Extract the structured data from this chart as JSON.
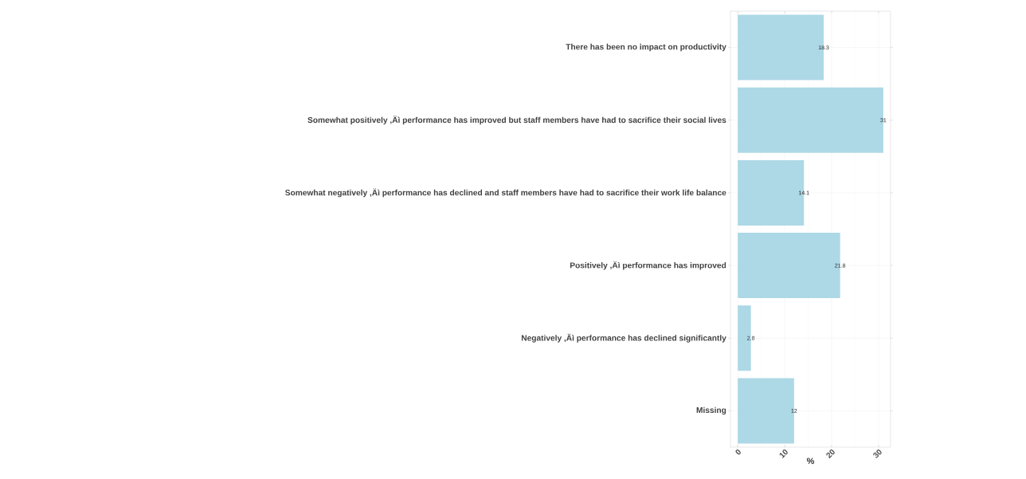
{
  "chart_data": {
    "type": "bar",
    "orientation": "horizontal",
    "xlabel": "%",
    "categories": [
      "There has been no impact on productivity",
      "Somewhat positively ,Äì performance has improved but staff members have had to sacrifice their social lives",
      "Somewhat negatively ,Äì performance has declined and staff members have had to sacrifice their work life balance",
      "Positively ,Äì performance has improved",
      "Negatively ,Äì performance has declined significantly",
      "Missing"
    ],
    "values": [
      18.3,
      31,
      14.1,
      21.8,
      2.8,
      12
    ],
    "color": "#add8e6",
    "data_labels": true,
    "xlim": [
      -1.55,
      32.55
    ],
    "xticks": [
      0,
      10,
      20,
      30
    ],
    "grid": true
  }
}
